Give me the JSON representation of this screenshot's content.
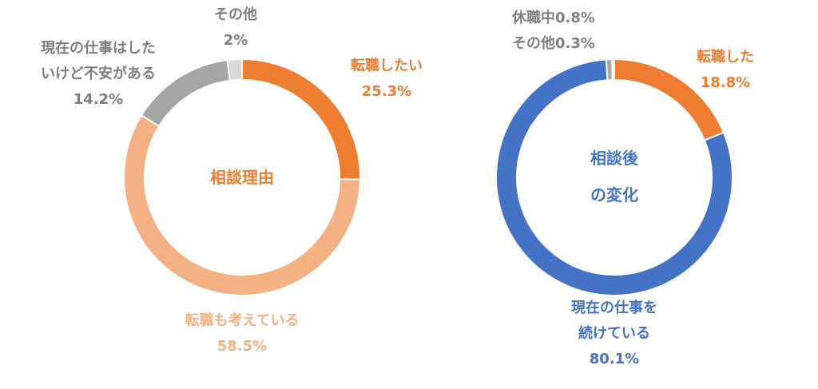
{
  "chart_data": [
    {
      "type": "pie",
      "style": "donut",
      "center_label": [
        "相談理由"
      ],
      "center_color": "#ED7D31",
      "slices": [
        {
          "label": "転職したい",
          "value": 25.3,
          "value_text": "25.3%",
          "color": "#ED7D31",
          "label_color": "#ED7D31"
        },
        {
          "label": "転職も考えている",
          "value": 58.5,
          "value_text": "58.5%",
          "color": "#F4B183",
          "label_color": "#F4B183"
        },
        {
          "label": "現在の仕事はしたいけど不安がある",
          "value": 14.2,
          "value_text": "14.2%",
          "color": "#A5A5A5",
          "label_color": "#7F7F7F"
        },
        {
          "label": "その他",
          "value": 2,
          "value_text": "2%",
          "color": "#D9D9D9",
          "label_color": "#7F7F7F"
        }
      ]
    },
    {
      "type": "pie",
      "style": "donut",
      "center_label": [
        "相談後",
        "の変化"
      ],
      "center_color": "#4472C4",
      "slices": [
        {
          "label": "転職した",
          "value": 18.8,
          "value_text": "18.8%",
          "color": "#ED7D31",
          "label_color": "#ED7D31"
        },
        {
          "label": "現在の仕事を続けている",
          "value": 80.1,
          "value_text": "80.1%",
          "color": "#4472C4",
          "label_color": "#4472C4"
        },
        {
          "label": "休職中",
          "value": 0.8,
          "value_text": "0.8%",
          "color": "#A5A5A5",
          "label_color": "#7F7F7F"
        },
        {
          "label": "その他",
          "value": 0.3,
          "value_text": "0.3%",
          "color": "#D9D9D9",
          "label_color": "#7F7F7F"
        }
      ]
    }
  ]
}
